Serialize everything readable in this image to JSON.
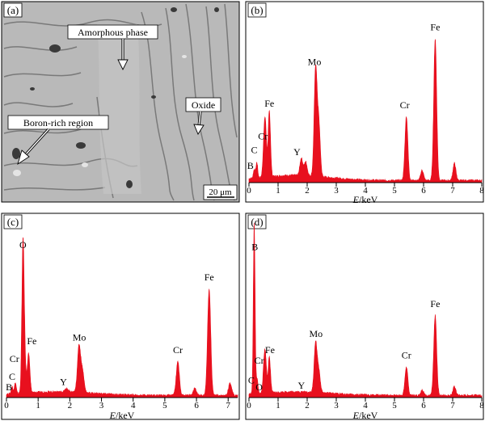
{
  "panels": {
    "a": {
      "label": "(a)",
      "annotations": {
        "amorphous": "Amorphous phase",
        "oxide": "Oxide",
        "boron": "Boron-rich region"
      },
      "scale_bar": "20 μm"
    },
    "b": {
      "label": "(b)"
    },
    "c": {
      "label": "(c)"
    },
    "d": {
      "label": "(d)"
    }
  },
  "colors": {
    "spectrum": "#e8101e",
    "frame": "#000000",
    "micrograph_bg": "#b9b9b9"
  },
  "chart_data": [
    {
      "panel": "b",
      "type": "area",
      "xlabel_prefix": "E",
      "xlabel_suffix": "/keV",
      "xlim": [
        0,
        8
      ],
      "xticks": [
        "0",
        "1",
        "2",
        "3",
        "4",
        "5",
        "6",
        "7",
        "8"
      ],
      "ylim": [
        0,
        100
      ],
      "peaks": [
        {
          "x": 0.18,
          "y": 5,
          "w": 0.03
        },
        {
          "x": 0.27,
          "y": 9,
          "w": 0.03
        },
        {
          "x": 0.52,
          "y": 18,
          "w": 0.04
        },
        {
          "x": 0.57,
          "y": 24,
          "w": 0.04
        },
        {
          "x": 0.7,
          "y": 38,
          "w": 0.04
        },
        {
          "x": 1.8,
          "y": 10,
          "w": 0.05
        },
        {
          "x": 1.95,
          "y": 8,
          "w": 0.05
        },
        {
          "x": 2.29,
          "y": 62,
          "w": 0.05
        },
        {
          "x": 2.4,
          "y": 30,
          "w": 0.05
        },
        {
          "x": 5.41,
          "y": 37,
          "w": 0.05
        },
        {
          "x": 5.95,
          "y": 6,
          "w": 0.05
        },
        {
          "x": 6.4,
          "y": 82,
          "w": 0.05
        },
        {
          "x": 7.06,
          "y": 10,
          "w": 0.05
        }
      ],
      "background": 3,
      "labels": [
        {
          "text": "B",
          "x": 0.05,
          "y": 8
        },
        {
          "text": "C",
          "x": 0.18,
          "y": 17
        },
        {
          "text": "Cr",
          "x": 0.48,
          "y": 25
        },
        {
          "text": "Fe",
          "x": 0.7,
          "y": 44
        },
        {
          "text": "Y",
          "x": 1.65,
          "y": 16
        },
        {
          "text": "Mo",
          "x": 2.25,
          "y": 68
        },
        {
          "text": "Cr",
          "x": 5.35,
          "y": 43
        },
        {
          "text": "Fe",
          "x": 6.4,
          "y": 88
        }
      ]
    },
    {
      "panel": "c",
      "type": "area",
      "xlabel_prefix": "E",
      "xlabel_suffix": "/keV",
      "xlim": [
        0,
        7.3
      ],
      "xticks": [
        "0",
        "1",
        "2",
        "3",
        "4",
        "5",
        "6",
        "7"
      ],
      "ylim": [
        0,
        100
      ],
      "peaks": [
        {
          "x": 0.18,
          "y": 4,
          "w": 0.03
        },
        {
          "x": 0.28,
          "y": 6,
          "w": 0.03
        },
        {
          "x": 0.52,
          "y": 78,
          "w": 0.035
        },
        {
          "x": 0.57,
          "y": 20,
          "w": 0.04
        },
        {
          "x": 0.7,
          "y": 22,
          "w": 0.04
        },
        {
          "x": 1.9,
          "y": 2,
          "w": 0.05
        },
        {
          "x": 2.29,
          "y": 26,
          "w": 0.05
        },
        {
          "x": 2.4,
          "y": 12,
          "w": 0.05
        },
        {
          "x": 5.41,
          "y": 19,
          "w": 0.05
        },
        {
          "x": 5.95,
          "y": 4,
          "w": 0.05
        },
        {
          "x": 6.4,
          "y": 60,
          "w": 0.05
        },
        {
          "x": 7.06,
          "y": 7,
          "w": 0.05
        }
      ],
      "background": 2,
      "labels": [
        {
          "text": "B",
          "x": 0.08,
          "y": 4
        },
        {
          "text": "C",
          "x": 0.18,
          "y": 10
        },
        {
          "text": "Cr",
          "x": 0.25,
          "y": 20
        },
        {
          "text": "O",
          "x": 0.52,
          "y": 84
        },
        {
          "text": "Fe",
          "x": 0.8,
          "y": 30
        },
        {
          "text": "Y",
          "x": 1.8,
          "y": 7
        },
        {
          "text": "Mo",
          "x": 2.3,
          "y": 32
        },
        {
          "text": "Cr",
          "x": 5.41,
          "y": 25
        },
        {
          "text": "Fe",
          "x": 6.4,
          "y": 66
        }
      ]
    },
    {
      "panel": "d",
      "type": "area",
      "xlabel_prefix": "E",
      "xlabel_suffix": "/keV",
      "xlim": [
        0,
        8
      ],
      "xticks": [
        "0",
        "1",
        "2",
        "3",
        "4",
        "5",
        "6",
        "7",
        "8"
      ],
      "ylim": [
        0,
        100
      ],
      "peaks": [
        {
          "x": 0.18,
          "y": 96,
          "w": 0.03
        },
        {
          "x": 0.28,
          "y": 8,
          "w": 0.03
        },
        {
          "x": 0.52,
          "y": 14,
          "w": 0.04
        },
        {
          "x": 0.57,
          "y": 16,
          "w": 0.04
        },
        {
          "x": 0.7,
          "y": 20,
          "w": 0.04
        },
        {
          "x": 2.29,
          "y": 28,
          "w": 0.05
        },
        {
          "x": 2.4,
          "y": 12,
          "w": 0.05
        },
        {
          "x": 5.41,
          "y": 16,
          "w": 0.05
        },
        {
          "x": 5.95,
          "y": 3,
          "w": 0.05
        },
        {
          "x": 6.4,
          "y": 45,
          "w": 0.05
        },
        {
          "x": 7.06,
          "y": 5,
          "w": 0.05
        }
      ],
      "background": 2,
      "labels": [
        {
          "text": "B",
          "x": 0.2,
          "y": 83
        },
        {
          "text": "C",
          "x": 0.08,
          "y": 8
        },
        {
          "text": "O",
          "x": 0.35,
          "y": 4
        },
        {
          "text": "Cr",
          "x": 0.35,
          "y": 19
        },
        {
          "text": "Fe",
          "x": 0.72,
          "y": 25
        },
        {
          "text": "Y",
          "x": 1.8,
          "y": 5
        },
        {
          "text": "Mo",
          "x": 2.3,
          "y": 34
        },
        {
          "text": "Cr",
          "x": 5.41,
          "y": 22
        },
        {
          "text": "Fe",
          "x": 6.4,
          "y": 51
        }
      ]
    }
  ]
}
